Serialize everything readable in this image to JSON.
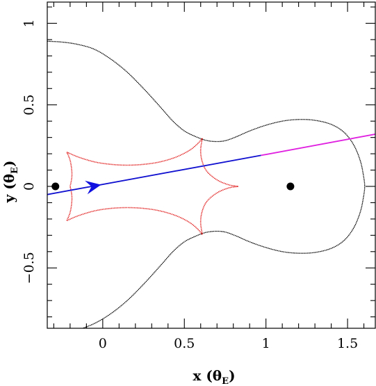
{
  "chart_data": {
    "type": "line",
    "title": "",
    "xlabel": "x (θ",
    "xlabel_sub": "E",
    "xlabel_close": ")",
    "ylabel": "y (θ",
    "ylabel_sub": "E",
    "ylabel_close": ")",
    "xlim": [
      -0.34,
      1.67
    ],
    "ylim": [
      -0.87,
      1.13
    ],
    "x_ticks": [
      {
        "value": 0,
        "label": "0"
      },
      {
        "value": 0.5,
        "label": "0.5"
      },
      {
        "value": 1,
        "label": "1"
      },
      {
        "value": 1.5,
        "label": "1.5"
      }
    ],
    "y_ticks": [
      {
        "value": -0.5,
        "label": "−0.5"
      },
      {
        "value": 0,
        "label": "0"
      },
      {
        "value": 0.5,
        "label": "0.5"
      },
      {
        "value": 1,
        "label": "1"
      }
    ],
    "grid": false,
    "legend": "none",
    "series": [
      {
        "kind": "critical-curve",
        "color": "#000000",
        "style": "dotted-solid",
        "points": [
          [
            -0.34,
            0.89
          ],
          [
            -0.25,
            0.885
          ],
          [
            -0.15,
            0.87
          ],
          [
            -0.05,
            0.84
          ],
          [
            0.05,
            0.78
          ],
          [
            0.15,
            0.7
          ],
          [
            0.25,
            0.6
          ],
          [
            0.35,
            0.49
          ],
          [
            0.43,
            0.4
          ],
          [
            0.5,
            0.34
          ],
          [
            0.57,
            0.305
          ],
          [
            0.63,
            0.283
          ],
          [
            0.69,
            0.275
          ],
          [
            0.75,
            0.28
          ],
          [
            0.82,
            0.305
          ],
          [
            0.9,
            0.34
          ],
          [
            1.0,
            0.375
          ],
          [
            1.1,
            0.4
          ],
          [
            1.2,
            0.41
          ],
          [
            1.3,
            0.405
          ],
          [
            1.4,
            0.38
          ],
          [
            1.48,
            0.33
          ],
          [
            1.54,
            0.25
          ],
          [
            1.58,
            0.15
          ],
          [
            1.6,
            0.05
          ],
          [
            1.605,
            0.0
          ],
          [
            1.6,
            -0.05
          ],
          [
            1.58,
            -0.15
          ],
          [
            1.54,
            -0.25
          ],
          [
            1.48,
            -0.33
          ],
          [
            1.4,
            -0.38
          ],
          [
            1.3,
            -0.405
          ],
          [
            1.2,
            -0.41
          ],
          [
            1.1,
            -0.4
          ],
          [
            1.0,
            -0.375
          ],
          [
            0.9,
            -0.34
          ],
          [
            0.82,
            -0.305
          ],
          [
            0.75,
            -0.28
          ],
          [
            0.69,
            -0.275
          ],
          [
            0.63,
            -0.283
          ],
          [
            0.57,
            -0.305
          ],
          [
            0.5,
            -0.34
          ],
          [
            0.43,
            -0.4
          ],
          [
            0.35,
            -0.49
          ],
          [
            0.25,
            -0.6
          ],
          [
            0.15,
            -0.7
          ],
          [
            0.05,
            -0.78
          ],
          [
            -0.05,
            -0.84
          ],
          [
            -0.15,
            -0.88
          ]
        ]
      },
      {
        "kind": "caustic",
        "color": "#e01010",
        "style": "dotted",
        "cusps": [
          [
            -0.22,
            0.21
          ],
          [
            0.61,
            0.295
          ],
          [
            0.83,
            0.0
          ],
          [
            0.61,
            -0.295
          ],
          [
            -0.22,
            -0.21
          ],
          [
            -0.2,
            0.0
          ]
        ],
        "points": [
          [
            -0.22,
            0.21
          ],
          [
            -0.15,
            0.18
          ],
          [
            -0.05,
            0.15
          ],
          [
            0.05,
            0.135
          ],
          [
            0.15,
            0.13
          ],
          [
            0.25,
            0.135
          ],
          [
            0.35,
            0.15
          ],
          [
            0.45,
            0.18
          ],
          [
            0.53,
            0.22
          ],
          [
            0.58,
            0.26
          ],
          [
            0.61,
            0.295
          ],
          [
            0.6,
            0.22
          ],
          [
            0.61,
            0.15
          ],
          [
            0.64,
            0.09
          ],
          [
            0.7,
            0.04
          ],
          [
            0.77,
            0.01
          ],
          [
            0.83,
            0.0
          ],
          [
            0.77,
            -0.01
          ],
          [
            0.7,
            -0.04
          ],
          [
            0.64,
            -0.09
          ],
          [
            0.61,
            -0.15
          ],
          [
            0.6,
            -0.22
          ],
          [
            0.61,
            -0.295
          ],
          [
            0.58,
            -0.26
          ],
          [
            0.53,
            -0.22
          ],
          [
            0.45,
            -0.18
          ],
          [
            0.35,
            -0.15
          ],
          [
            0.25,
            -0.135
          ],
          [
            0.15,
            -0.13
          ],
          [
            0.05,
            -0.135
          ],
          [
            -0.05,
            -0.15
          ],
          [
            -0.15,
            -0.18
          ],
          [
            -0.22,
            -0.21
          ],
          [
            -0.2,
            -0.16
          ],
          [
            -0.19,
            -0.1
          ],
          [
            -0.19,
            -0.05
          ],
          [
            -0.2,
            0.0
          ],
          [
            -0.19,
            0.05
          ],
          [
            -0.19,
            0.1
          ],
          [
            -0.2,
            0.16
          ],
          [
            -0.22,
            0.21
          ]
        ]
      },
      {
        "kind": "source-trajectory",
        "color": "#1010d0",
        "points": [
          [
            -0.34,
            -0.05
          ],
          [
            0.97,
            0.19
          ]
        ]
      },
      {
        "kind": "source-trajectory-extension",
        "color": "#e020e0",
        "points": [
          [
            0.97,
            0.19
          ],
          [
            1.67,
            0.32
          ]
        ]
      }
    ],
    "masses": [
      [
        -0.29,
        0.0
      ],
      [
        1.15,
        0.0
      ]
    ],
    "arrow": {
      "color": "#1010e0",
      "tip": [
        -0.01,
        0.01
      ],
      "direction": [
        1.0,
        0.183
      ]
    }
  }
}
